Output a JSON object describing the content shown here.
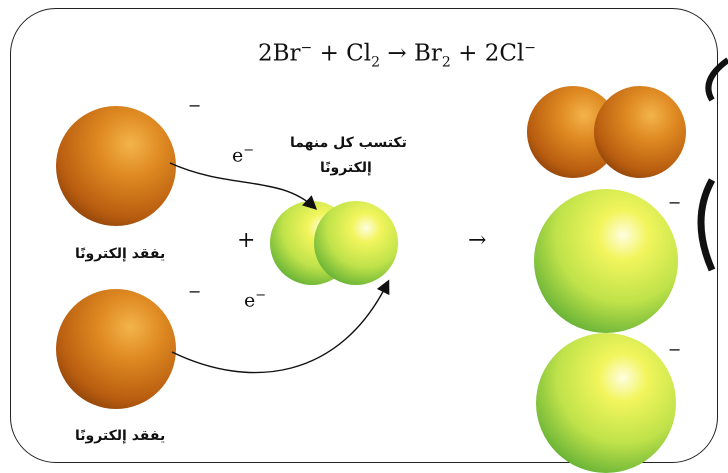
{
  "equation": {
    "lhs_1": "2Br",
    "lhs_1_charge": "−",
    "plus_1": "+",
    "lhs_2": "Cl",
    "lhs_2_sub": "2",
    "arrow": "→",
    "rhs_1": "Br",
    "rhs_1_sub": "2",
    "plus_2": "+",
    "rhs_2": "2Cl",
    "rhs_2_charge": "−"
  },
  "labels": {
    "loses_electron_top": "يفقد إلكترونًا",
    "loses_electron_bottom": "يفقد إلكترونًا",
    "gains_line_1": "تكتسب كل منهما",
    "gains_line_2": "إلكترونًا",
    "electron_top": "e",
    "electron_bottom": "e",
    "electron_charge": "−",
    "plus_sign": "+",
    "reaction_arrow": "→",
    "charge_minus": "−"
  },
  "colors": {
    "bromide_orange": "#d97a1a",
    "chlorine_green": "#b8e04a",
    "frame_border": "#222222"
  }
}
